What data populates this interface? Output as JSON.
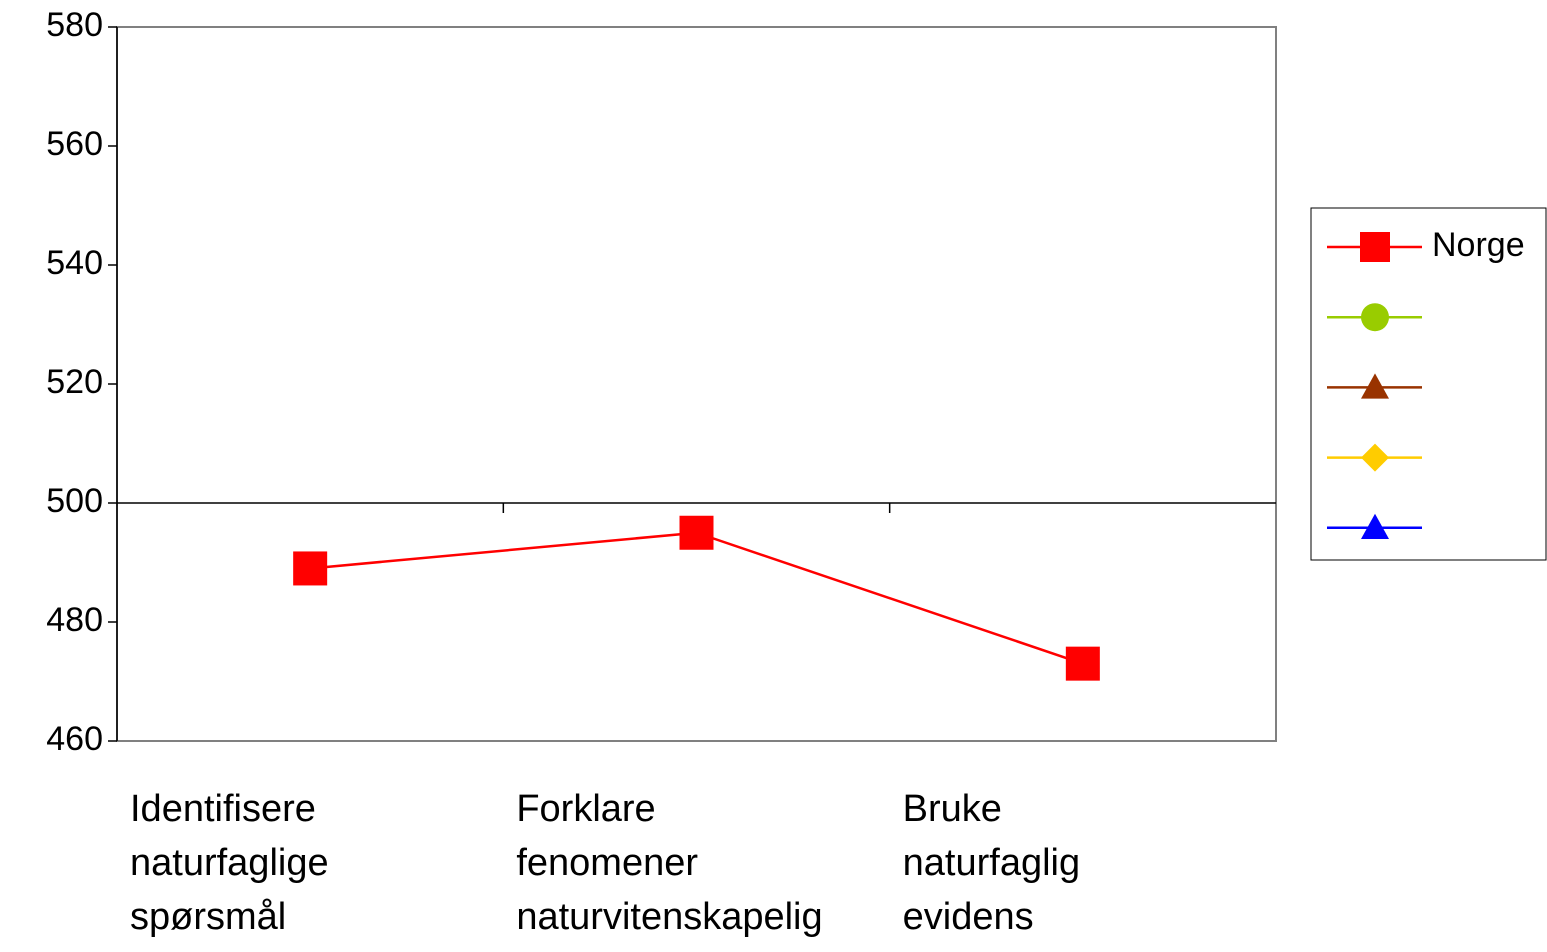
{
  "chart_data": {
    "type": "line",
    "categories": [
      "Identifisere\nnaturfaglige\nspørsmål",
      "Forklare\nfenomener\nnaturvitenskapelig",
      "Bruke\nnaturfaglig\nevidens"
    ],
    "series": [
      {
        "name": "Norge",
        "color": "#ff0000",
        "marker": "square",
        "values": [
          489,
          495,
          473
        ]
      },
      {
        "name": null,
        "color": "#99cc00",
        "marker": "circle",
        "values": [
          null,
          null,
          null
        ]
      },
      {
        "name": null,
        "color": "#993300",
        "marker": "triangle",
        "values": [
          null,
          null,
          null
        ]
      },
      {
        "name": null,
        "color": "#ffcc00",
        "marker": "diamond",
        "values": [
          null,
          null,
          null
        ]
      },
      {
        "name": null,
        "color": "#0000ff",
        "marker": "triangle",
        "values": [
          null,
          null,
          null
        ]
      }
    ],
    "ylim": [
      460,
      580
    ],
    "yticks": [
      460,
      480,
      500,
      520,
      540,
      560,
      580
    ],
    "x_axis_crosses": 500,
    "grid": false,
    "legend": "right"
  }
}
